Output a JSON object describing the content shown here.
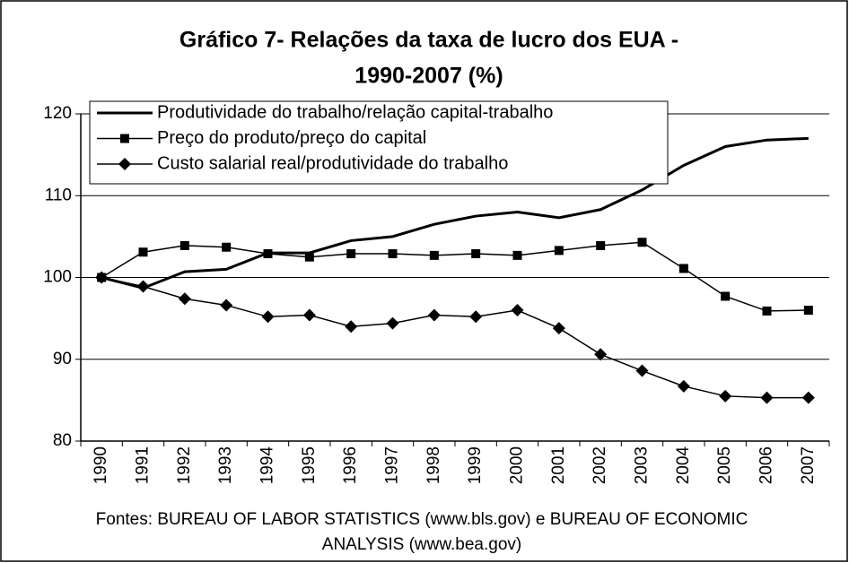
{
  "chart_data": {
    "type": "line",
    "title": [
      "Gráfico 7- Relações da taxa de lucro dos EUA -",
      "1990-2007 (%)"
    ],
    "categories": [
      "1990",
      "1991",
      "1992",
      "1993",
      "1994",
      "1995",
      "1996",
      "1997",
      "1998",
      "1999",
      "2000",
      "2001",
      "2002",
      "2003",
      "2004",
      "2005",
      "2006",
      "2007"
    ],
    "series": [
      {
        "name": "Produtividade do trabalho/relação capital-trabalho",
        "color": "#000000",
        "marker": "none",
        "values": [
          100,
          98.7,
          100.7,
          101,
          103,
          103,
          104.5,
          105,
          106.5,
          107.5,
          108,
          107.3,
          108.3,
          110.7,
          113.7,
          116,
          116.8,
          117
        ]
      },
      {
        "name": "Preço do produto/preço do capital",
        "color": "#000000",
        "marker": "square",
        "values": [
          100,
          103.1,
          103.9,
          103.7,
          102.9,
          102.5,
          102.9,
          102.9,
          102.7,
          102.9,
          102.7,
          103.3,
          103.9,
          104.3,
          101.1,
          97.7,
          95.9,
          96
        ]
      },
      {
        "name": "Custo salarial real/produtividade do trabalho",
        "color": "#000000",
        "marker": "diamond",
        "values": [
          100,
          98.9,
          97.4,
          96.6,
          95.2,
          95.4,
          94,
          94.4,
          95.4,
          95.2,
          96,
          93.8,
          90.6,
          88.6,
          86.7,
          85.5,
          85.3,
          85.3
        ]
      }
    ],
    "ylim": [
      80,
      120
    ],
    "yticks": [
      80,
      90,
      100,
      110,
      120
    ],
    "grid": true,
    "note": [
      "Fontes: BUREAU OF LABOR STATISTICS (www.bls.gov) e BUREAU OF ECONOMIC",
      "ANALYSIS (www.bea.gov)"
    ]
  }
}
